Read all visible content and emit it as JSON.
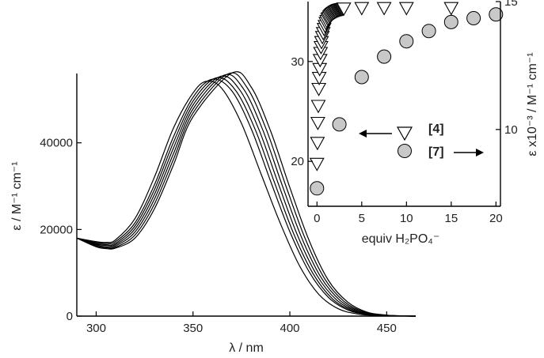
{
  "chart_data": [
    {
      "type": "line",
      "xlabel": "λ / nm",
      "ylabel": "ε / M⁻¹ cm⁻¹",
      "xlim": [
        290,
        465
      ],
      "ylim": [
        0,
        56000
      ],
      "xticks": [
        300,
        350,
        400,
        450
      ],
      "yticks": [
        0,
        20000,
        40000
      ],
      "ytick_labels": [
        "0",
        "20000",
        "40000"
      ],
      "grid": false,
      "color": "#000000",
      "series": [
        {
          "peak_x": 357,
          "peak_y": 54200,
          "x": [
            290,
            300,
            305,
            310,
            320,
            330,
            340,
            350,
            357,
            365,
            375,
            385,
            395,
            405,
            415,
            425,
            435,
            445,
            455,
            465
          ],
          "y": [
            18000,
            17200,
            17000,
            17600,
            22500,
            32000,
            43500,
            51500,
            54200,
            52500,
            44500,
            33000,
            21500,
            11600,
            5000,
            1700,
            500,
            130,
            30,
            0
          ]
        },
        {
          "peak_x": 360,
          "peak_y": 54700,
          "x": [
            290,
            300,
            305,
            310,
            320,
            330,
            340,
            350,
            360,
            370,
            380,
            390,
            400,
            410,
            420,
            430,
            440,
            450,
            460,
            465
          ],
          "y": [
            18000,
            17000,
            16800,
            17200,
            21500,
            30200,
            41500,
            50500,
            54700,
            52000,
            43300,
            31200,
            19500,
            10200,
            4300,
            1400,
            380,
            100,
            20,
            0
          ]
        },
        {
          "peak_x": 362,
          "peak_y": 55000,
          "x": [
            290,
            300,
            305,
            310,
            320,
            330,
            340,
            350,
            362,
            372,
            382,
            392,
            402,
            412,
            422,
            432,
            442,
            452,
            460,
            465
          ],
          "y": [
            18000,
            16800,
            16500,
            16800,
            20800,
            29100,
            40200,
            49600,
            55000,
            52100,
            43200,
            30900,
            19000,
            9800,
            4000,
            1300,
            350,
            90,
            20,
            0
          ]
        },
        {
          "peak_x": 364,
          "peak_y": 55300,
          "x": [
            290,
            300,
            305,
            310,
            320,
            330,
            340,
            350,
            364,
            374,
            384,
            394,
            404,
            414,
            424,
            434,
            444,
            454,
            460,
            465
          ],
          "y": [
            18000,
            16600,
            16300,
            16500,
            20100,
            28000,
            38900,
            48700,
            55300,
            52300,
            43100,
            30600,
            18600,
            9400,
            3800,
            1200,
            320,
            80,
            20,
            0
          ]
        },
        {
          "peak_x": 366,
          "peak_y": 55600,
          "x": [
            290,
            300,
            305,
            310,
            320,
            330,
            340,
            350,
            366,
            376,
            386,
            396,
            406,
            416,
            426,
            436,
            446,
            456,
            460,
            465
          ],
          "y": [
            18000,
            16400,
            16000,
            16200,
            19400,
            26900,
            37600,
            47800,
            55600,
            52500,
            43000,
            30300,
            18200,
            9000,
            3600,
            1100,
            290,
            70,
            30,
            0
          ]
        },
        {
          "peak_x": 368,
          "peak_y": 55900,
          "x": [
            290,
            300,
            305,
            310,
            320,
            330,
            340,
            350,
            368,
            378,
            388,
            398,
            408,
            418,
            428,
            438,
            448,
            456,
            460,
            465
          ],
          "y": [
            18000,
            16200,
            15800,
            15900,
            18700,
            25800,
            36300,
            46900,
            55900,
            52700,
            42900,
            30000,
            17800,
            8600,
            3400,
            1000,
            260,
            80,
            40,
            0
          ]
        },
        {
          "peak_x": 370,
          "peak_y": 56100,
          "x": [
            290,
            300,
            305,
            310,
            320,
            330,
            340,
            350,
            370,
            380,
            390,
            400,
            410,
            420,
            430,
            440,
            450,
            456,
            460,
            465
          ],
          "y": [
            18000,
            16000,
            15600,
            15700,
            18000,
            24700,
            35000,
            46000,
            56100,
            52900,
            42800,
            29700,
            17400,
            8200,
            3200,
            900,
            230,
            90,
            40,
            0
          ]
        }
      ]
    },
    {
      "type": "scatter",
      "xlabel": "equiv  H₂PO₄⁻",
      "ylabel_right": "ε x10⁻³ / M⁻¹ cm⁻¹",
      "xlim": [
        -1,
        20.5
      ],
      "ylim_left": [
        15.5,
        36
      ],
      "ylim_right": [
        7,
        15
      ],
      "xticks": [
        0,
        5,
        10,
        15,
        20
      ],
      "yticks_left": [
        20,
        30
      ],
      "yticks_right": [
        10,
        15
      ],
      "legend_placement": "center-right",
      "series": [
        {
          "name": "[4]",
          "axis": "left",
          "marker": "triangle-down",
          "fill": "#ffffff",
          "arrow": "left",
          "x": [
            0.0,
            0.05,
            0.1,
            0.15,
            0.2,
            0.25,
            0.3,
            0.35,
            0.4,
            0.45,
            0.5,
            0.6,
            0.7,
            0.8,
            0.9,
            1.0,
            1.1,
            1.2,
            1.3,
            1.4,
            1.5,
            1.6,
            1.7,
            1.8,
            1.9,
            2.0,
            2.1,
            2.2,
            2.3,
            2.4,
            2.5,
            2.6,
            2.7,
            2.8,
            2.9,
            3.0,
            5,
            7.5,
            10,
            15
          ],
          "y": [
            19.7,
            21.8,
            23.8,
            25.5,
            27.2,
            28.3,
            29.2,
            30.1,
            30.8,
            31.4,
            31.9,
            32.4,
            32.8,
            33.2,
            33.5,
            33.8,
            34.0,
            34.2,
            34.3,
            34.45,
            34.55,
            34.65,
            34.72,
            34.8,
            34.86,
            34.92,
            34.97,
            35.02,
            35.06,
            35.1,
            35.13,
            35.16,
            35.18,
            35.2,
            35.22,
            35.25,
            35.3,
            35.3,
            35.3,
            35.3
          ]
        },
        {
          "name": "[7]",
          "axis": "right",
          "marker": "circle",
          "fill": "#c8c8c8",
          "arrow": "right",
          "x": [
            0,
            2.5,
            5,
            7.5,
            10,
            12.5,
            15,
            17.5,
            20
          ],
          "y": [
            7.7,
            10.2,
            12.05,
            12.85,
            13.45,
            13.85,
            14.2,
            14.35,
            14.5
          ]
        }
      ]
    }
  ]
}
